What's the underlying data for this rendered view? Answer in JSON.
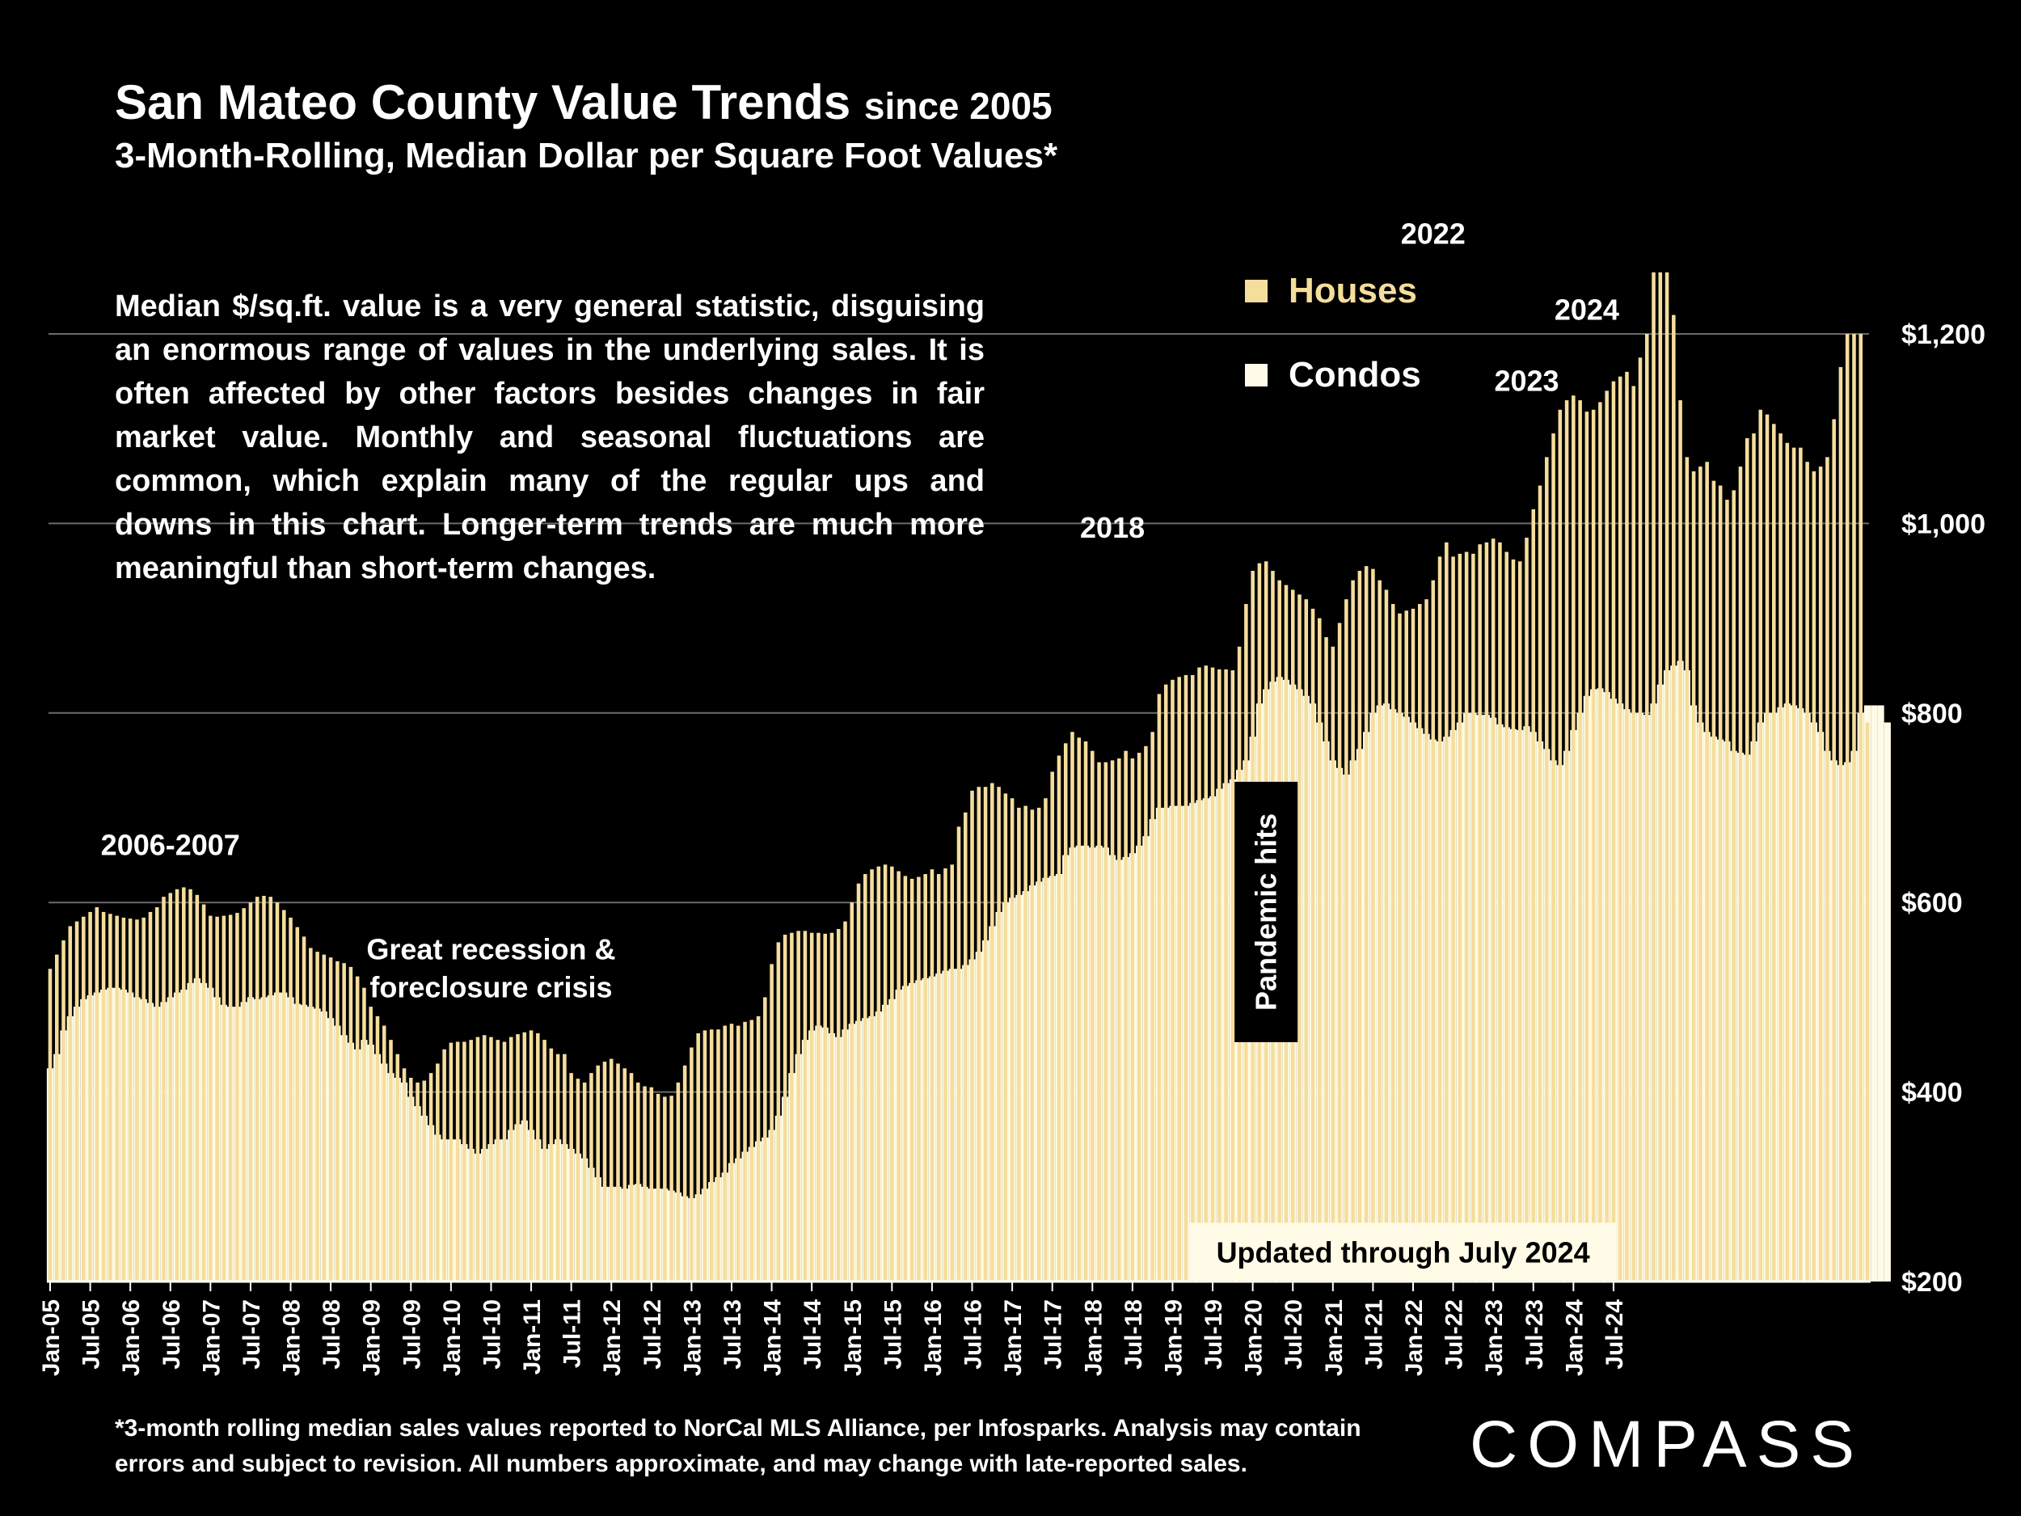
{
  "header": {
    "title_main": "San Mateo County Value Trends",
    "title_since": "since 2005",
    "subtitle": "3-Month-Rolling, Median Dollar per Square Foot Values*"
  },
  "note": "Median $/sq.ft. value is a very general statistic, disguising an enormous range of values in the underlying sales. It is often affected by other factors besides changes in fair market value. Monthly and seasonal fluctuations are common, which explain many of the regular ups and downs in this chart. Longer-term trends are much more meaningful than short-term changes.",
  "footnote": "*3-month rolling median sales values reported to NorCal MLS Alliance, per Infosparks. Analysis may contain errors and subject to revision. All numbers approximate, and may change with late-reported sales.",
  "brand": "COMPASS",
  "colors": {
    "houses": "#f5dd9c",
    "condos": "#fffbe6",
    "background": "#000000",
    "gridline": "#6b6b6b"
  },
  "chart_data": {
    "type": "bar",
    "title": "San Mateo County Value Trends since 2005",
    "subtitle": "3-Month-Rolling, Median Dollar per Square Foot Values*",
    "start_month": "Jan-05",
    "end_month": "Jul-24",
    "ylim": [
      200,
      1300
    ],
    "y_ticks": [
      200,
      400,
      600,
      800,
      1000,
      1200
    ],
    "y_tick_labels": [
      "$200",
      "$400",
      "$600",
      "$800",
      "$1,000",
      "$1,200"
    ],
    "x_tick_labels": [
      "Jan-05",
      "Jul-05",
      "Jan-06",
      "Jul-06",
      "Jan-07",
      "Jul-07",
      "Jan-08",
      "Jul-08",
      "Jan-09",
      "Jul-09",
      "Jan-10",
      "Jul-10",
      "Jan-11",
      "Jul-11",
      "Jan-12",
      "Jul-12",
      "Jan-13",
      "Jul-13",
      "Jan-14",
      "Jul-14",
      "Jan-15",
      "Jul-15",
      "Jan-16",
      "Jul-16",
      "Jan-17",
      "Jul-17",
      "Jan-18",
      "Jul-18",
      "Jan-19",
      "Jul-19",
      "Jan-20",
      "Jul-20",
      "Jan-21",
      "Jul-21",
      "Jan-22",
      "Jul-22",
      "Jan-23",
      "Jul-23",
      "Jan-24",
      "Jul-24"
    ],
    "legend": {
      "placement": "top-center",
      "entries": [
        "Houses",
        "Condos"
      ]
    },
    "grid": true,
    "series": [
      {
        "name": "Houses",
        "values": [
          530,
          545,
          560,
          575,
          580,
          585,
          590,
          595,
          590,
          588,
          586,
          584,
          583,
          582,
          584,
          590,
          595,
          606,
          610,
          614,
          616,
          614,
          608,
          598,
          586,
          585,
          586,
          587,
          589,
          594,
          600,
          606,
          607,
          606,
          600,
          592,
          584,
          574,
          564,
          552,
          548,
          545,
          542,
          538,
          536,
          532,
          522,
          510,
          490,
          480,
          470,
          455,
          440,
          425,
          415,
          410,
          412,
          420,
          430,
          445,
          452,
          453,
          453,
          455,
          458,
          460,
          458,
          455,
          453,
          458,
          461,
          463,
          465,
          462,
          455,
          446,
          440,
          440,
          420,
          414,
          410,
          420,
          428,
          432,
          435,
          430,
          425,
          420,
          410,
          406,
          405,
          398,
          395,
          396,
          410,
          428,
          447,
          462,
          465,
          466,
          466,
          470,
          472,
          470,
          474,
          476,
          480,
          500,
          535,
          558,
          566,
          568,
          570,
          570,
          568,
          568,
          567,
          568,
          572,
          580,
          600,
          620,
          630,
          635,
          638,
          640,
          638,
          633,
          628,
          625,
          627,
          630,
          635,
          630,
          636,
          640,
          680,
          695,
          718,
          722,
          722,
          726,
          722,
          715,
          710,
          700,
          702,
          698,
          700,
          710,
          738,
          755,
          768,
          780,
          774,
          770,
          760,
          748,
          748,
          750,
          752,
          760,
          752,
          758,
          765,
          780,
          820,
          830,
          835,
          838,
          840,
          840,
          848,
          850,
          848,
          846,
          846,
          845,
          870,
          915,
          950,
          958,
          960,
          950,
          940,
          935,
          930,
          925,
          920,
          910,
          900,
          880,
          870,
          895,
          920,
          940,
          950,
          955,
          952,
          940,
          930,
          915,
          905,
          908,
          910,
          915,
          920,
          940,
          965,
          980,
          965,
          968,
          970,
          968,
          978,
          980,
          984,
          980,
          970,
          962,
          960,
          985,
          1015,
          1040,
          1070,
          1095,
          1120,
          1130,
          1135,
          1130,
          1118,
          1120,
          1128,
          1140,
          1150,
          1155,
          1160,
          1145,
          1175,
          1200,
          1265,
          1265,
          1265,
          1220,
          1130,
          1070,
          1055,
          1060,
          1065,
          1045,
          1040,
          1025,
          1035,
          1060,
          1090,
          1095,
          1120,
          1115,
          1105,
          1095,
          1085,
          1080,
          1080,
          1065,
          1055,
          1060,
          1070,
          1110,
          1165,
          1200,
          1200,
          1200,
          790
        ]
      },
      {
        "name": "Condos",
        "values": [
          425,
          440,
          465,
          480,
          490,
          498,
          502,
          505,
          508,
          510,
          510,
          508,
          505,
          500,
          498,
          494,
          490,
          495,
          500,
          505,
          508,
          515,
          520,
          515,
          510,
          500,
          492,
          490,
          490,
          495,
          500,
          498,
          500,
          502,
          505,
          505,
          500,
          493,
          492,
          490,
          488,
          485,
          478,
          470,
          460,
          452,
          445,
          455,
          450,
          440,
          430,
          420,
          415,
          410,
          395,
          385,
          375,
          365,
          355,
          350,
          350,
          350,
          345,
          340,
          335,
          340,
          345,
          350,
          350,
          360,
          366,
          370,
          360,
          350,
          340,
          345,
          350,
          345,
          340,
          335,
          330,
          320,
          310,
          300,
          300,
          300,
          298,
          302,
          303,
          300,
          298,
          298,
          298,
          296,
          294,
          290,
          288,
          292,
          298,
          305,
          310,
          315,
          325,
          330,
          337,
          342,
          348,
          352,
          360,
          375,
          395,
          420,
          440,
          455,
          465,
          470,
          468,
          462,
          458,
          466,
          472,
          475,
          478,
          480,
          485,
          492,
          498,
          508,
          512,
          515,
          518,
          520,
          522,
          525,
          528,
          530,
          530,
          534,
          540,
          548,
          560,
          575,
          590,
          600,
          605,
          608,
          612,
          618,
          622,
          626,
          628,
          630,
          650,
          658,
          660,
          660,
          658,
          660,
          658,
          650,
          645,
          648,
          652,
          660,
          670,
          688,
          700,
          700,
          702,
          702,
          702,
          705,
          708,
          710,
          712,
          720,
          726,
          730,
          740,
          750,
          775,
          810,
          825,
          833,
          838,
          835,
          830,
          825,
          818,
          810,
          790,
          770,
          750,
          742,
          735,
          750,
          762,
          780,
          800,
          808,
          810,
          804,
          800,
          796,
          790,
          784,
          778,
          772,
          770,
          775,
          782,
          790,
          800,
          800,
          798,
          798,
          795,
          788,
          785,
          783,
          782,
          786,
          780,
          770,
          762,
          750,
          745,
          760,
          782,
          800,
          818,
          825,
          826,
          822,
          815,
          810,
          804,
          800,
          800,
          798,
          810,
          830,
          845,
          850,
          855,
          845,
          808,
          790,
          780,
          775,
          772,
          770,
          760,
          758,
          756,
          770,
          790,
          800,
          800,
          806,
          810,
          808,
          805,
          800,
          790,
          780,
          760,
          750,
          745,
          748,
          760,
          800,
          808,
          808,
          808,
          790
        ]
      }
    ],
    "annotations": [
      {
        "text": "2006-2007",
        "x": "Jul-06",
        "y": 650
      },
      {
        "text": "Great recession &",
        "x": "Jul-10",
        "y": 540
      },
      {
        "text": "foreclosure crisis",
        "x": "Jul-10",
        "y": 500
      },
      {
        "text": "2018",
        "x": "Apr-18",
        "y": 985
      },
      {
        "text": "Pandemic hits",
        "x": "Mar-20",
        "y": 590,
        "style": "boxed-vertical"
      },
      {
        "text": "2022",
        "x": "Apr-22",
        "y": 1295
      },
      {
        "text": "2023",
        "x": "Jun-23",
        "y": 1140
      },
      {
        "text": "2024",
        "x": "Mar-24",
        "y": 1215
      }
    ],
    "badge": {
      "text": "Updated through July 2024",
      "x_from": "Apr-19",
      "x_to": "Jul-24",
      "y_from": 200,
      "y_to": 262
    }
  }
}
